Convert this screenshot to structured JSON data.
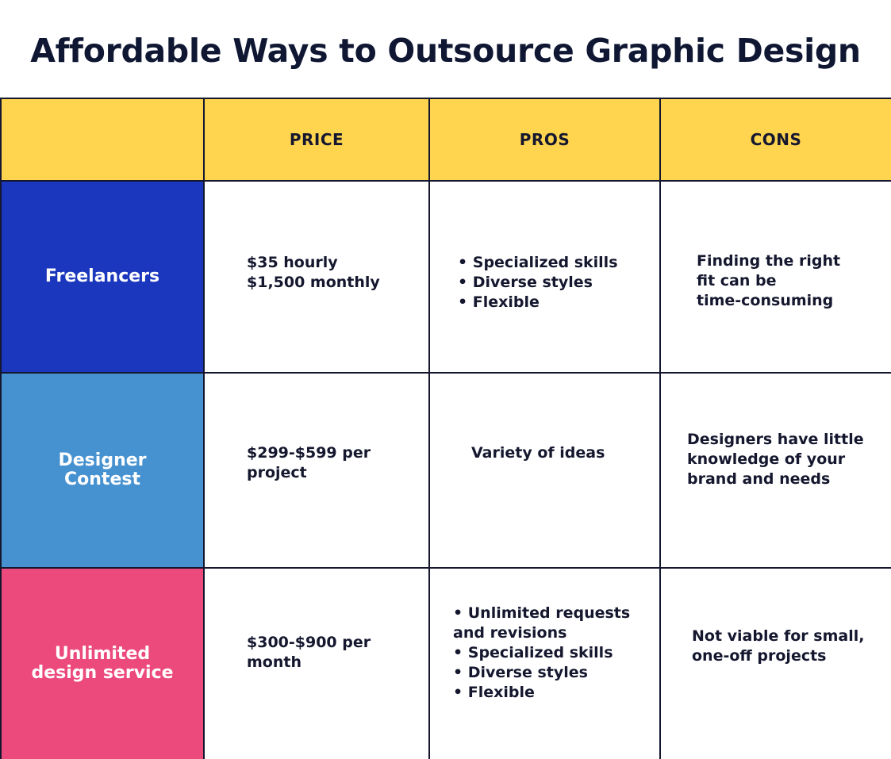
{
  "title": "Affordable Ways to Outsource Graphic Design",
  "headers": {
    "blank": "",
    "price": "PRICE",
    "pros": "PROS",
    "cons": "CONS"
  },
  "rows": [
    {
      "label_lines": [
        "Freelancers"
      ],
      "label_color": "#1a37bd",
      "price_lines": [
        "$35 hourly",
        "$1,500 monthly"
      ],
      "pros_lines": [
        "• Specialized skills",
        "• Diverse styles",
        "• Flexible"
      ],
      "cons_lines": [
        "Finding the right",
        "fit can be",
        "time-consuming"
      ]
    },
    {
      "label_lines": [
        "Designer",
        "Contest"
      ],
      "label_color": "#4691d0",
      "price_lines": [
        "$299-$599 per",
        "project"
      ],
      "pros_lines": [
        "Variety of ideas"
      ],
      "cons_lines": [
        "Designers have little",
        "knowledge of your",
        "brand and needs"
      ]
    },
    {
      "label_lines": [
        "Unlimited",
        "design service"
      ],
      "label_color": "#ec497c",
      "price_lines": [
        "$300-$900 per",
        "month"
      ],
      "pros_lines": [
        "• Unlimited requests",
        "and revisions",
        "• Specialized skills",
        "• Diverse styles",
        "• Flexible"
      ],
      "cons_lines": [
        "Not viable for small,",
        "one-off projects"
      ]
    }
  ],
  "colors": {
    "header_bg": "#ffd44f",
    "text": "#14172e"
  }
}
